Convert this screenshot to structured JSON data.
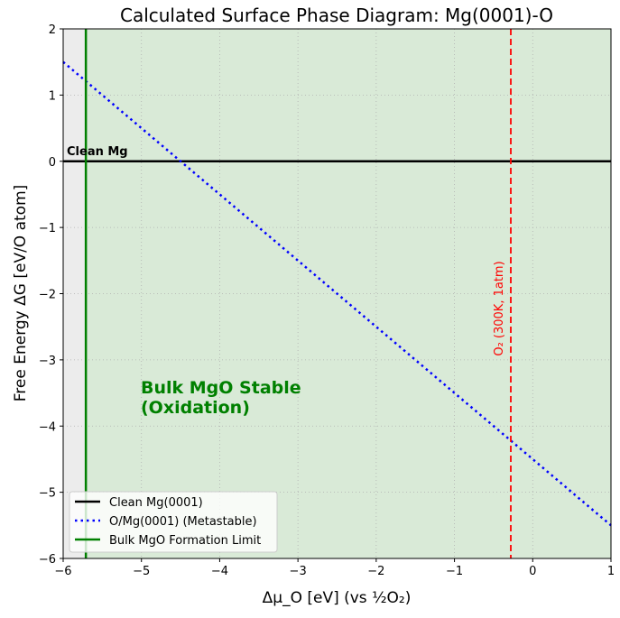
{
  "chart_data": {
    "type": "line",
    "title": "Calculated Surface Phase Diagram: Mg(0001)-O",
    "xlabel": "Δμ_O [eV] (vs ½O₂)",
    "ylabel": "Free Energy ΔG [eV/O atom]",
    "xlim": [
      -6,
      1
    ],
    "ylim": [
      -6,
      2
    ],
    "xticks": [
      -6,
      -5,
      -4,
      -3,
      -2,
      -1,
      0,
      1
    ],
    "yticks": [
      -6,
      -5,
      -4,
      -3,
      -2,
      -1,
      0,
      1,
      2
    ],
    "grid": true,
    "legend_position": "lower-left",
    "series": [
      {
        "name": "Clean Mg(0001)",
        "color": "#000000",
        "style": "solid",
        "x": [
          -6,
          1
        ],
        "y": [
          0,
          0
        ]
      },
      {
        "name": "O/Mg(0001) (Metastable)",
        "color": "#0000ff",
        "style": "dotted",
        "x": [
          -6,
          1
        ],
        "y": [
          1.5,
          -5.5
        ]
      },
      {
        "name": "Bulk MgO Formation Limit",
        "color": "#008000",
        "style": "solid",
        "vertical_x": -5.71
      }
    ],
    "reference_line": {
      "label": "O₂ (300K, 1atm)",
      "x": -0.28,
      "color": "#ff0000",
      "style": "dashed"
    },
    "regions": [
      {
        "x": [
          -6,
          -5.71
        ],
        "color": "#ececec"
      },
      {
        "x": [
          -5.71,
          1
        ],
        "color": "#d9ead7",
        "label_line1": "Bulk MgO Stable",
        "label_line2": "(Oxidation)",
        "label_color": "#008000"
      }
    ],
    "annotations": [
      {
        "text": "Clean Mg",
        "x": -5.95,
        "y": 0.05
      }
    ]
  }
}
